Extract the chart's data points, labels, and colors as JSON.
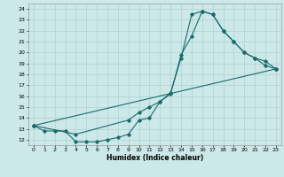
{
  "title": "",
  "xlabel": "Humidex (Indice chaleur)",
  "xlim": [
    -0.5,
    23.5
  ],
  "ylim": [
    11.5,
    24.5
  ],
  "xticks": [
    0,
    1,
    2,
    3,
    4,
    5,
    6,
    7,
    8,
    9,
    10,
    11,
    12,
    13,
    14,
    15,
    16,
    17,
    18,
    19,
    20,
    21,
    22,
    23
  ],
  "yticks": [
    12,
    13,
    14,
    15,
    16,
    17,
    18,
    19,
    20,
    21,
    22,
    23,
    24
  ],
  "bg_color": "#cce8e8",
  "grid_color": "#aacccc",
  "line_color": "#1a6b6b",
  "line1_x": [
    0,
    1,
    2,
    3,
    4,
    5,
    6,
    7,
    8,
    9,
    10,
    11,
    12,
    13,
    14,
    15,
    16,
    17,
    18,
    19,
    20,
    21,
    22,
    23
  ],
  "line1_y": [
    13.3,
    12.8,
    12.8,
    12.8,
    11.8,
    11.8,
    11.8,
    12.0,
    12.2,
    12.5,
    13.8,
    14.0,
    15.5,
    16.3,
    19.5,
    23.5,
    23.8,
    23.5,
    22.0,
    21.0,
    20.0,
    19.5,
    18.8,
    18.5
  ],
  "line2_x": [
    0,
    23
  ],
  "line2_y": [
    13.3,
    18.5
  ],
  "line3_x": [
    0,
    4,
    9,
    10,
    11,
    12,
    13,
    14,
    15,
    16,
    17,
    18,
    19,
    20,
    21,
    22,
    23
  ],
  "line3_y": [
    13.3,
    12.5,
    13.8,
    14.5,
    15.0,
    15.5,
    16.2,
    19.8,
    21.5,
    23.8,
    23.5,
    22.0,
    21.0,
    20.0,
    19.5,
    19.2,
    18.5
  ],
  "xlabel_fontsize": 5.5,
  "tick_fontsize": 4.5,
  "lw": 0.8,
  "ms": 1.8
}
